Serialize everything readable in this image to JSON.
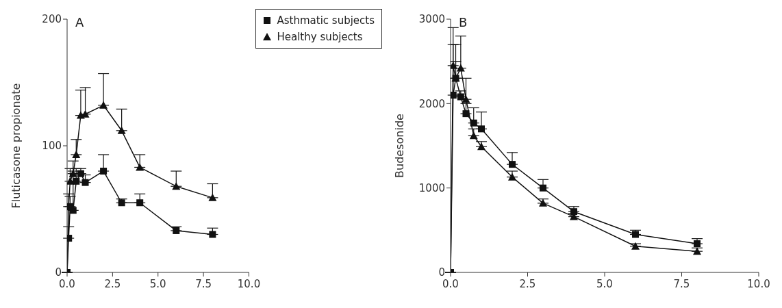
{
  "chart_data": [
    {
      "type": "line",
      "ylabel": "Fluticasone propionate",
      "annotations": [
        "A"
      ],
      "xlim": [
        0,
        10
      ],
      "xticks": [
        {
          "value": 0,
          "label": "0.0"
        },
        {
          "value": 2.5,
          "label": "2.5"
        },
        {
          "value": 5,
          "label": "5.0"
        },
        {
          "value": 7.5,
          "label": "7.5"
        },
        {
          "value": 10,
          "label": "10.0"
        }
      ],
      "ylim": [
        0,
        200
      ],
      "yticks": [
        0,
        100,
        200
      ],
      "grid": false,
      "legend": "top right",
      "x": [
        0,
        0.083,
        0.167,
        0.33,
        0.5,
        0.75,
        1,
        2,
        3,
        4,
        6,
        8
      ],
      "series": [
        {
          "name": "Asthmatic subjects",
          "color": "#111111",
          "marker": "square",
          "values": [
            0,
            27,
            52,
            49,
            72,
            78,
            71,
            80,
            55,
            55,
            33,
            30
          ],
          "errors": [
            null,
            [
              27,
              36
            ],
            [
              52,
              60
            ],
            [
              49,
              80
            ],
            [
              72,
              82
            ],
            [
              78,
              82
            ],
            [
              71,
              77
            ],
            [
              80,
              93
            ],
            [
              55,
              58
            ],
            [
              55,
              62
            ],
            [
              33,
              36
            ],
            [
              30,
              35
            ]
          ]
        },
        {
          "name": "Healthy subjects",
          "color": "#111111",
          "marker": "triangle",
          "values": [
            0,
            52,
            72,
            78,
            93,
            124,
            125,
            132,
            112,
            83,
            68,
            59
          ],
          "errors": [
            null,
            [
              52,
              62
            ],
            [
              72,
              82
            ],
            [
              78,
              88
            ],
            [
              93,
              105
            ],
            [
              124,
              144
            ],
            [
              125,
              146
            ],
            [
              132,
              157
            ],
            [
              112,
              129
            ],
            [
              83,
              93
            ],
            [
              68,
              80
            ],
            [
              59,
              70
            ]
          ]
        }
      ]
    },
    {
      "type": "line",
      "ylabel": "Budesonide",
      "annotations": [
        "B"
      ],
      "xlim": [
        0,
        10
      ],
      "xticks": [
        {
          "value": 0,
          "label": "0.0"
        },
        {
          "value": 2.5,
          "label": "2.5"
        },
        {
          "value": 5,
          "label": "5.0"
        },
        {
          "value": 7.5,
          "label": "7.5"
        },
        {
          "value": 10,
          "label": "10.0"
        }
      ],
      "ylim": [
        0,
        3000
      ],
      "yticks": [
        0,
        1000,
        2000,
        3000
      ],
      "grid": false,
      "x": [
        0,
        0.083,
        0.167,
        0.33,
        0.5,
        0.75,
        1,
        2,
        3,
        4,
        6,
        8
      ],
      "series": [
        {
          "color": "#111111",
          "marker": "square",
          "values": [
            0,
            2100,
            2300,
            2080,
            1880,
            1770,
            1700,
            1280,
            1000,
            720,
            450,
            340
          ],
          "errors": [
            null,
            [
              2100,
              2900
            ],
            [
              2300,
              2700
            ],
            [
              2080,
              2150
            ],
            [
              1880,
              2000
            ],
            [
              1770,
              1950
            ],
            [
              1700,
              1900
            ],
            [
              1280,
              1420
            ],
            [
              1000,
              1100
            ],
            [
              720,
              780
            ],
            [
              450,
              500
            ],
            [
              340,
              400
            ]
          ]
        },
        {
          "color": "#111111",
          "marker": "triangle",
          "values": [
            0,
            2450,
            2300,
            2420,
            2050,
            1620,
            1490,
            1130,
            820,
            660,
            310,
            250
          ],
          "errors": [
            null,
            [
              2450,
              2700
            ],
            [
              2300,
              2500
            ],
            [
              2420,
              2800
            ],
            [
              2050,
              2300
            ],
            [
              1620,
              1700
            ],
            [
              1490,
              1550
            ],
            [
              1130,
              1200
            ],
            [
              820,
              870
            ],
            [
              660,
              700
            ],
            [
              310,
              340
            ],
            [
              250,
              290
            ]
          ]
        }
      ]
    }
  ]
}
